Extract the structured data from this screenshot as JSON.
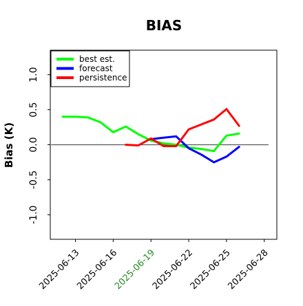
{
  "chart_data": {
    "type": "line",
    "title": "BIAS",
    "ylabel": "Bias (K)",
    "xlabel": "",
    "ylim": [
      -1.35,
      1.35
    ],
    "xlim": [
      "2025-06-11",
      "2025-06-29"
    ],
    "yticks": [
      "-1.0",
      "-0.5",
      "0.0",
      "0.5",
      "1.0"
    ],
    "xticks": [
      "2025-06-13",
      "2025-06-16",
      "2025-06-19",
      "2025-06-22",
      "2025-06-25",
      "2025-06-28"
    ],
    "xtick_colors": [
      "#000000",
      "#000000",
      "#228b22",
      "#000000",
      "#000000",
      "#000000"
    ],
    "zero_line": true,
    "legend": {
      "placement": "top-left"
    },
    "series": [
      {
        "name": "best est.",
        "color": "#00ff00",
        "x": [
          "2025-06-12",
          "2025-06-13",
          "2025-06-14",
          "2025-06-15",
          "2025-06-16",
          "2025-06-17",
          "2025-06-18",
          "2025-06-19",
          "2025-06-20",
          "2025-06-21",
          "2025-06-22",
          "2025-06-23",
          "2025-06-24",
          "2025-06-25",
          "2025-06-26"
        ],
        "values": [
          0.4,
          0.4,
          0.39,
          0.32,
          0.18,
          0.26,
          0.15,
          0.06,
          0.02,
          0.0,
          -0.04,
          -0.06,
          -0.09,
          0.13,
          0.16
        ]
      },
      {
        "name": "forecast",
        "color": "#0000ff",
        "x": [
          "2025-06-19",
          "2025-06-20",
          "2025-06-21",
          "2025-06-22",
          "2025-06-23",
          "2025-06-24",
          "2025-06-25",
          "2025-06-26"
        ],
        "values": [
          0.08,
          0.1,
          0.12,
          -0.05,
          -0.14,
          -0.25,
          -0.17,
          -0.03
        ]
      },
      {
        "name": "persistence",
        "color": "#ff0000",
        "x": [
          "2025-06-17",
          "2025-06-18",
          "2025-06-19",
          "2025-06-20",
          "2025-06-21",
          "2025-06-22",
          "2025-06-23",
          "2025-06-24",
          "2025-06-25",
          "2025-06-26"
        ],
        "values": [
          0.0,
          -0.01,
          0.09,
          -0.02,
          -0.02,
          0.22,
          0.29,
          0.36,
          0.51,
          0.27
        ]
      }
    ]
  }
}
